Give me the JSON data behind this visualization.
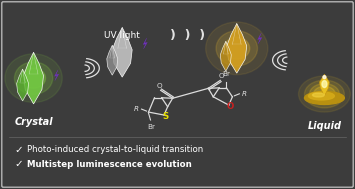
{
  "bg_color": "#3c3c3c",
  "border_color": "#888888",
  "text_color": "#ffffff",
  "bullet1": "Photo-induced crystal-to-liquid transition",
  "bullet2": "Multistep luminescence evolution",
  "crystal_label": "Crystal",
  "liquid_label": "Liquid",
  "uv_label": "UV light",
  "green_crystal_color": "#72c842",
  "green_glow_color": "#90e040",
  "gray_crystal_color": "#c0c0c0",
  "yellow_crystal_color": "#d4a020",
  "yellow_glow_color": "#e8b830",
  "candle_color": "#c8a010",
  "candle_glow_color": "#e8c020",
  "lightning_color": "#7030c0",
  "wave_color": "#cccccc",
  "S_color": "#e8e000",
  "O_color": "#cc2020",
  "molecule_color": "#dddddd"
}
